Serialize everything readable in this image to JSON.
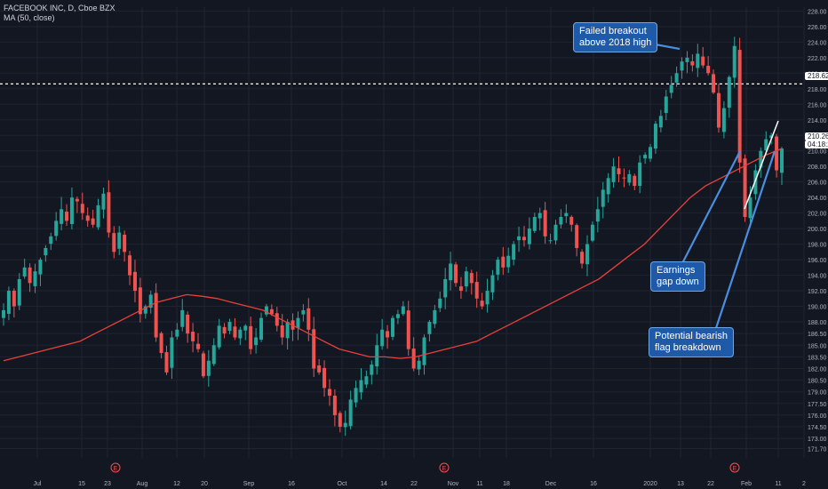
{
  "header": {
    "symbol_line": "FACEBOOK INC, D, Cboe BZX",
    "indicator_line": "MA (50, close)"
  },
  "colors": {
    "background": "#131722",
    "grid": "#1f2433",
    "up": "#26a69a",
    "down": "#ef5350",
    "ma": "#e8413b",
    "axis_text": "#b2b5be",
    "callout_fill": "#1e5aa8",
    "callout_arrow": "#4a8ee0"
  },
  "annotations": {
    "failed_breakout": "Failed breakout\nabove 2018 high",
    "earnings_gap": "Earnings\ngap down",
    "bearish_flag": "Potential bearish\nflag breakdown"
  },
  "price_tags": {
    "level_2018_high": "218.62",
    "last_price": "210.26",
    "countdown": "04:18:23"
  },
  "chart_data": {
    "type": "candlestick",
    "title": "FACEBOOK INC, D, Cboe BZX",
    "indicator": "MA (50, close)",
    "ylim": [
      170.5,
      228.5
    ],
    "y_ticks": [
      "228.00",
      "226.00",
      "224.00",
      "222.00",
      "220.00",
      "218.00",
      "216.00",
      "214.00",
      "212.00",
      "210.00",
      "208.00",
      "206.00",
      "204.00",
      "202.00",
      "200.00",
      "198.00",
      "196.00",
      "194.00",
      "192.00",
      "190.00",
      "188.00",
      "186.50",
      "185.00",
      "183.50",
      "182.00",
      "180.50",
      "179.00",
      "177.50",
      "176.00",
      "174.50",
      "173.00",
      "171.70"
    ],
    "x_ticks": [
      "Jul",
      "15",
      "23",
      "Aug",
      "12",
      "20",
      "Sep",
      "16",
      "Oct",
      "14",
      "22",
      "Nov",
      "11",
      "18",
      "Dec",
      "16",
      "2020",
      "13",
      "22",
      "Feb",
      "11",
      "2"
    ],
    "horizontal_level": 218.62,
    "earnings_markers": [
      "E",
      "E",
      "E"
    ],
    "period": "Jun 2019 – Feb 2020, daily",
    "closes_approx": [
      189.5,
      192.0,
      190.0,
      193.5,
      195.0,
      193.0,
      194.5,
      196.0,
      197.5,
      199.0,
      201.0,
      202.5,
      201.0,
      204.0,
      203.5,
      202.0,
      201.0,
      200.5,
      203.0,
      204.5,
      199.5,
      197.0,
      199.5,
      197.0,
      194.0,
      192.0,
      189.0,
      190.0,
      191.5,
      186.0,
      184.0,
      181.5,
      186.0,
      187.0,
      189.5,
      186.5,
      185.5,
      184.5,
      181.0,
      183.0,
      185.0,
      187.5,
      186.5,
      188.0,
      186.0,
      187.0,
      187.5,
      184.5,
      186.0,
      188.5,
      190.0,
      189.0,
      187.5,
      186.0,
      188.0,
      187.0,
      188.5,
      189.5,
      187.0,
      182.0,
      181.5,
      179.5,
      178.5,
      176.0,
      174.5,
      175.0,
      178.0,
      179.5,
      180.5,
      181.0,
      182.5,
      185.0,
      187.0,
      186.0,
      188.5,
      189.0,
      190.0,
      184.5,
      182.0,
      183.0,
      186.0,
      188.0,
      189.5,
      191.0,
      193.5,
      195.5,
      193.0,
      192.0,
      194.5,
      193.0,
      191.0,
      190.0,
      192.0,
      194.0,
      196.0,
      195.0,
      196.5,
      198.0,
      199.0,
      198.5,
      200.0,
      201.5,
      202.0,
      199.0,
      198.5,
      200.5,
      201.5,
      202.0,
      200.5,
      197.5,
      195.5,
      198.0,
      200.5,
      202.5,
      205.0,
      206.5,
      208.0,
      207.0,
      206.5,
      207.0,
      205.5,
      208.5,
      209.5,
      210.5,
      213.5,
      214.5,
      217.0,
      218.5,
      220.0,
      221.5,
      222.0,
      221.0,
      222.5,
      221.0,
      220.0,
      217.5,
      213.0,
      215.5,
      219.5,
      223.5,
      208.5,
      201.5,
      204.0,
      207.5,
      210.0,
      211.5,
      212.0,
      207.5,
      210.3
    ],
    "moving_average_approx": [
      183.0,
      183.5,
      184.0,
      184.5,
      185.0,
      185.5,
      186.5,
      187.5,
      188.5,
      189.5,
      190.5,
      191.0,
      191.5,
      191.3,
      191.0,
      190.5,
      190.0,
      189.5,
      188.5,
      187.5,
      186.5,
      185.5,
      184.5,
      184.0,
      183.5,
      183.5,
      183.3,
      183.5,
      184.0,
      184.5,
      185.0,
      185.5,
      186.5,
      187.5,
      188.5,
      189.5,
      190.5,
      191.5,
      192.5,
      193.5,
      195.0,
      196.5,
      198.0,
      200.0,
      202.0,
      204.0,
      205.5,
      206.5,
      207.5,
      208.5,
      209.5,
      210.3
    ]
  }
}
